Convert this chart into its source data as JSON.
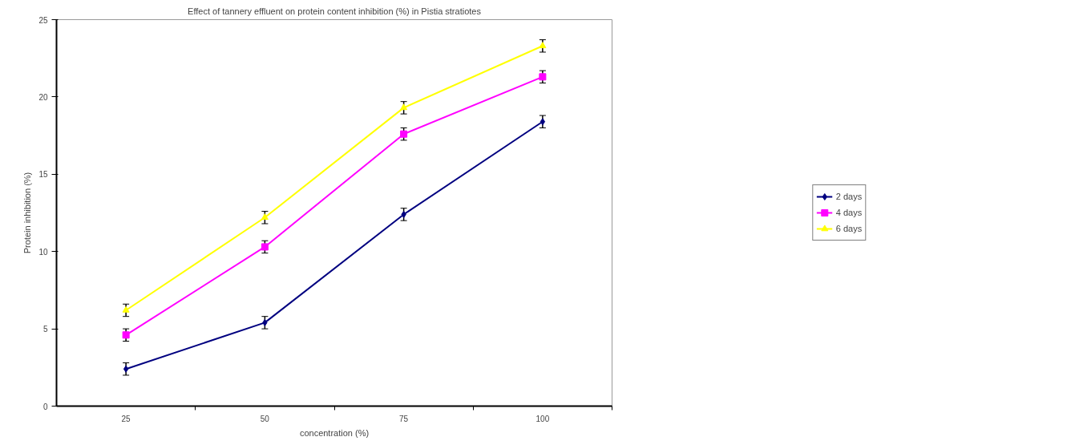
{
  "chart_data": {
    "type": "line",
    "title": "Effect of tannery effluent on protein content inhibition (%) in Pistia stratiotes",
    "xlabel": "concentration (%)",
    "ylabel": "Protein inhibition (%)",
    "categories": [
      "25",
      "50",
      "75",
      "100"
    ],
    "series": [
      {
        "name": "2 days",
        "color": "#000080",
        "marker": "diamond",
        "values": [
          2.4,
          5.4,
          12.4,
          18.4
        ],
        "errors": [
          0.4,
          0.4,
          0.4,
          0.4
        ]
      },
      {
        "name": "4 days",
        "color": "#ff00ff",
        "marker": "square",
        "values": [
          4.6,
          10.3,
          17.6,
          21.3
        ],
        "errors": [
          0.4,
          0.4,
          0.4,
          0.4
        ]
      },
      {
        "name": "6 days",
        "color": "#ffff00",
        "marker": "triangle",
        "values": [
          6.2,
          12.2,
          19.3,
          23.3
        ],
        "errors": [
          0.4,
          0.4,
          0.4,
          0.4
        ]
      }
    ],
    "ylim": [
      0,
      25
    ],
    "yticks": [
      0,
      5,
      10,
      15,
      20,
      25
    ],
    "grid": false,
    "legend": "right"
  }
}
